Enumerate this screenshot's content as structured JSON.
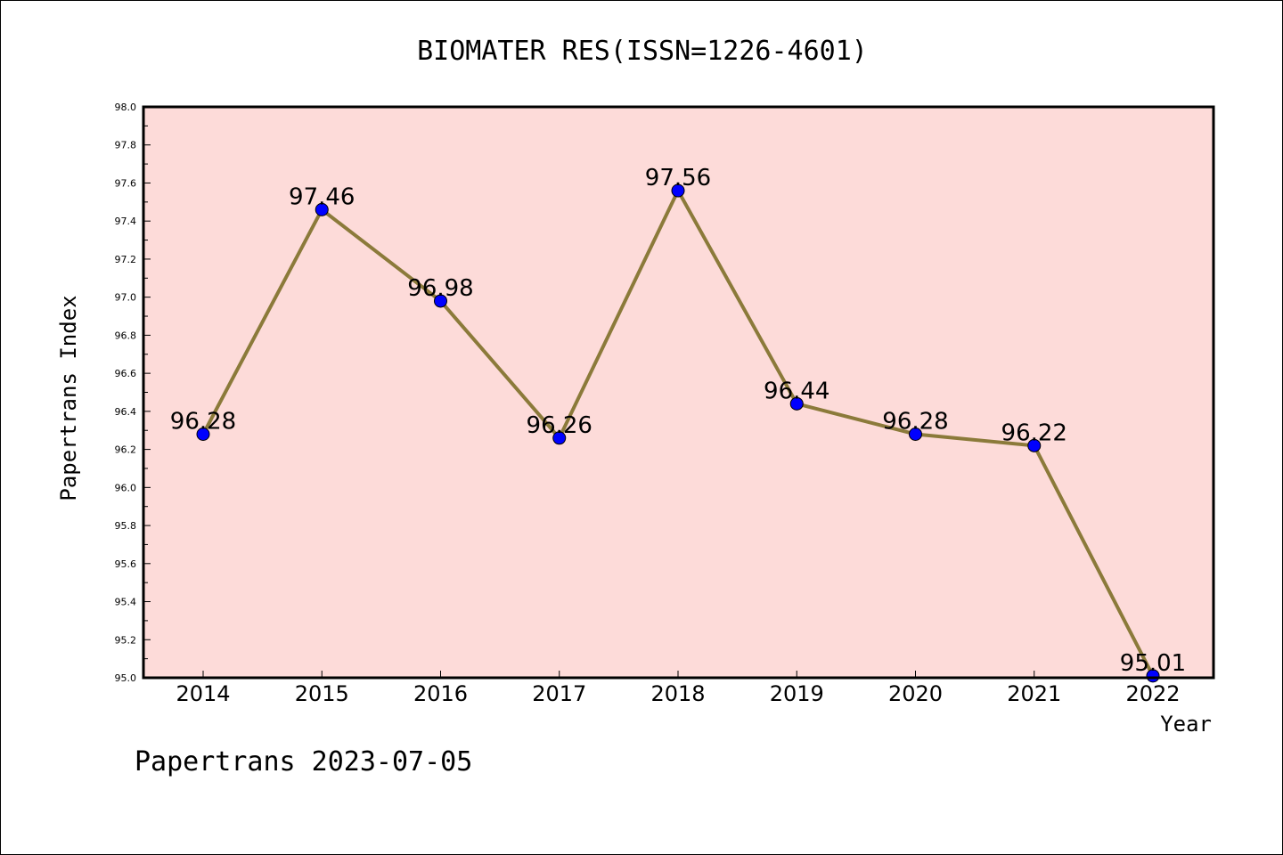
{
  "chart_data": {
    "type": "line",
    "title": "BIOMATER RES(ISSN=1226-4601)",
    "xlabel": "Year",
    "ylabel": "Papertrans Index",
    "categories": [
      "2014",
      "2015",
      "2016",
      "2017",
      "2018",
      "2019",
      "2020",
      "2021",
      "2022"
    ],
    "series": [
      {
        "values": [
          96.28,
          97.46,
          96.98,
          96.26,
          97.56,
          96.44,
          96.28,
          96.22,
          95.01
        ],
        "labels": [
          "96.28",
          "97.46",
          "96.98",
          "96.26",
          "97.56",
          "96.44",
          "96.28",
          "96.22",
          "95.01"
        ]
      }
    ],
    "ylim": [
      95.0,
      98.0
    ],
    "yticks": [
      "95.0",
      "95.2",
      "95.4",
      "95.6",
      "95.8",
      "96.0",
      "96.2",
      "96.4",
      "96.6",
      "96.8",
      "97.0",
      "97.2",
      "97.4",
      "97.6",
      "97.8",
      "98.0"
    ],
    "grid": false,
    "colors": {
      "plot_background": "#fddbd9",
      "line": "#8b7a3a",
      "marker": "#0000ff"
    }
  },
  "footer": "Papertrans 2023-07-05"
}
